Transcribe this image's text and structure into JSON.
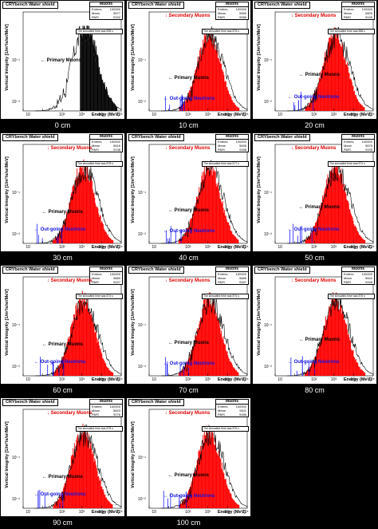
{
  "panels": [
    {
      "caption": "0 cm",
      "title": "CRYbench Water shield",
      "stats": {
        "header": "Muons",
        "rows": [
          [
            "Entries",
            "100000"
          ],
          [
            "Mean",
            "5677"
          ],
          [
            "RMS",
            "9152"
          ]
        ]
      },
      "sim_note": "The simualted time was 898 s",
      "has_secondary": false,
      "has_neutrons": false
    },
    {
      "caption": "10 cm",
      "title": "CRYbench Water shield",
      "stats": {
        "header": "Muons",
        "rows": [
          [
            "Entries",
            "100000"
          ],
          [
            "Mean",
            "5555"
          ],
          [
            "RMS",
            "9086"
          ]
        ]
      },
      "sim_note": "The simualted time was 876 s",
      "has_secondary": true,
      "has_neutrons": true
    },
    {
      "caption": "20 cm",
      "title": "CRYbench Water shield",
      "stats": {
        "header": "Muons",
        "rows": [
          [
            "Entries",
            "100000"
          ],
          [
            "Mean",
            "5605"
          ],
          [
            "RMS",
            "9145"
          ]
        ]
      },
      "sim_note": "The simualted time was 888 s",
      "has_secondary": true,
      "has_neutrons": true
    },
    {
      "caption": "30 cm",
      "title": "CRYbench Water shield",
      "stats": {
        "header": "Muons",
        "rows": [
          [
            "Entries",
            "100000"
          ],
          [
            "Mean",
            "5616"
          ],
          [
            "RMS",
            "9138"
          ]
        ]
      },
      "sim_note": "The simualted time was 878 s",
      "has_secondary": true,
      "has_neutrons": true
    },
    {
      "caption": "40 cm",
      "title": "CRYbench Water shield",
      "stats": {
        "header": "Muons",
        "rows": [
          [
            "Entries",
            "100000"
          ],
          [
            "Mean",
            "5635"
          ],
          [
            "RMS",
            "9188"
          ]
        ]
      },
      "sim_note": "The simualted time was 877 s",
      "has_secondary": true,
      "has_neutrons": true
    },
    {
      "caption": "50 cm",
      "title": "CRYbench Water shield",
      "stats": {
        "header": "Muons",
        "rows": [
          [
            "Entries",
            "100000"
          ],
          [
            "Mean",
            "5675"
          ],
          [
            "RMS",
            "9195"
          ]
        ]
      },
      "sim_note": "The simualted time was 871 s",
      "has_secondary": true,
      "has_neutrons": true
    },
    {
      "caption": "60 cm",
      "title": "CRYbench Water shield",
      "stats": {
        "header": "Muons",
        "rows": [
          [
            "Entries",
            "100000"
          ],
          [
            "Mean",
            "5669"
          ],
          [
            "RMS",
            "9227"
          ]
        ]
      },
      "sim_note": "The simualted time was 874 s",
      "has_secondary": true,
      "has_neutrons": true
    },
    {
      "caption": "70 cm",
      "title": "CRYbench Water shield",
      "stats": {
        "header": "Muons",
        "rows": [
          [
            "Entries",
            "100000"
          ],
          [
            "Mean",
            "5685"
          ],
          [
            "RMS",
            "9187"
          ]
        ]
      },
      "sim_note": "The simualted time was 874 s",
      "has_secondary": true,
      "has_neutrons": true
    },
    {
      "caption": "80 cm",
      "title": "CRYbench Water shield",
      "stats": {
        "header": "Muons",
        "rows": [
          [
            "Entries",
            "100000"
          ],
          [
            "Mean",
            "5642"
          ],
          [
            "RMS",
            "9158"
          ]
        ]
      },
      "sim_note": "The simualted time was 876 s",
      "has_secondary": true,
      "has_neutrons": true
    },
    {
      "caption": "90 cm",
      "title": "CRYbench Water shield",
      "stats": {
        "header": "Muons",
        "rows": [
          [
            "Entries",
            "100000"
          ],
          [
            "Mean",
            "5643"
          ],
          [
            "RMS",
            "9276"
          ]
        ]
      },
      "sim_note": "The simualted time was 878 s",
      "has_secondary": true,
      "has_neutrons": true
    },
    {
      "caption": "100 cm",
      "title": "CRYbench Water shield",
      "stats": {
        "header": "Muons",
        "rows": [
          [
            "Entries",
            "100000"
          ],
          [
            "Mean",
            "5611"
          ],
          [
            "RMS",
            "9286"
          ]
        ]
      },
      "sim_note": "The simualted time was 876 s",
      "has_secondary": true,
      "has_neutrons": true
    }
  ],
  "labels": {
    "ylabel": "Vertical Integrity [1/m²/s/sr/MeV]",
    "xlabel": "Energy (MeV)",
    "secondary": "↓ Secondary Muons",
    "primary": "← Primary Muons",
    "neutrons": "← Out-going Neutrons"
  },
  "ticks": {
    "x": [
      "1",
      "10",
      "10²",
      "10³",
      "10⁴",
      "10⁵"
    ],
    "y": [
      "10⁻¹",
      "10⁻²"
    ]
  },
  "colors": {
    "primary": "#000000",
    "secondary": "#ff0000",
    "neutrons": "#0000ff",
    "background": "#000000"
  },
  "chart_data": {
    "type": "histogram",
    "xlabel": "Energy (MeV)",
    "ylabel": "Vertical Integrity [1/m²/s/sr/MeV]",
    "x_scale": "log",
    "y_scale": "log",
    "xlim": [
      1,
      100000
    ],
    "series": [
      {
        "name": "Primary Muons",
        "color": "#000000"
      },
      {
        "name": "Secondary Muons",
        "color": "#ff0000"
      },
      {
        "name": "Out-going Neutrons",
        "color": "#0000ff"
      }
    ]
  }
}
